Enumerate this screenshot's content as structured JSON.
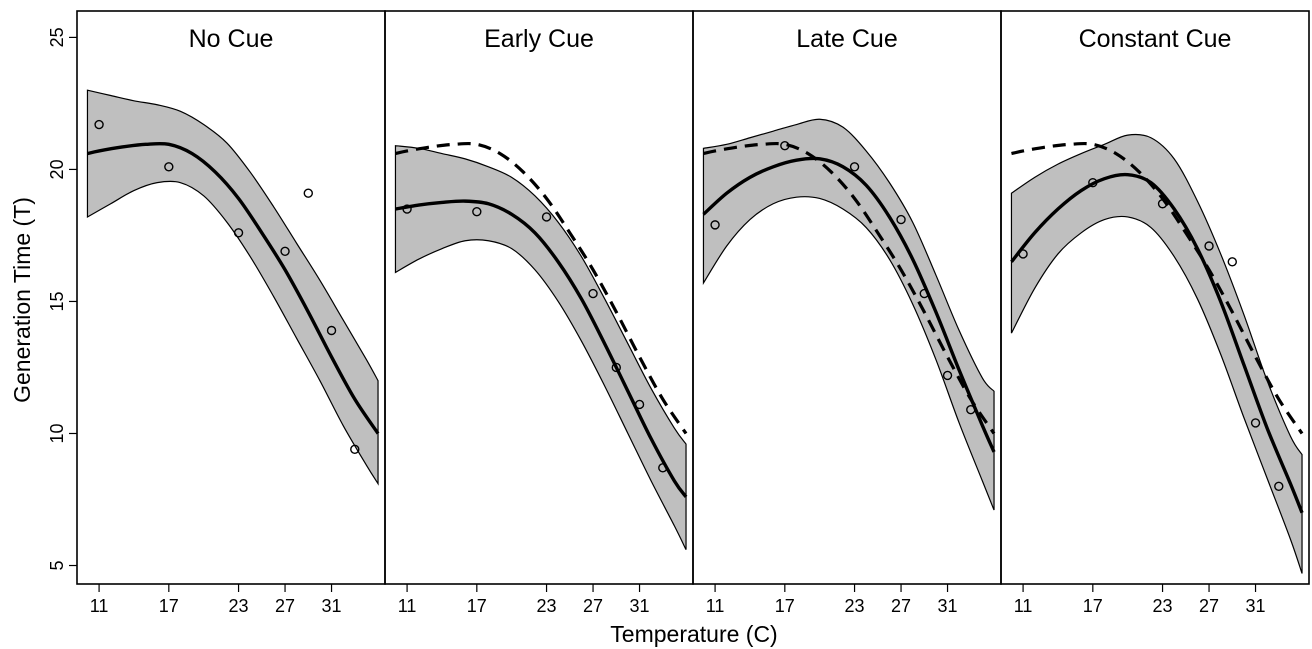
{
  "chart_data": {
    "type": "line",
    "xlabel": "Temperature (C)",
    "ylabel": "Generation Time (T)",
    "ylim": [
      4.3,
      26
    ],
    "xlim": [
      9.1,
      35.6
    ],
    "x_ticks": [
      11,
      17,
      23,
      27,
      31
    ],
    "y_ticks": [
      5,
      10,
      15,
      20,
      25
    ],
    "grid": false,
    "colors": {
      "fit": "#000000",
      "band": "#bfbfbf",
      "reference": "#000000"
    },
    "panels": [
      {
        "title": "No Cue",
        "points": [
          [
            11,
            21.7
          ],
          [
            17,
            20.1
          ],
          [
            23,
            17.6
          ],
          [
            27,
            16.9
          ],
          [
            29,
            19.1
          ],
          [
            31,
            13.9
          ],
          [
            33,
            9.4
          ]
        ],
        "fit": [
          [
            10,
            20.6
          ],
          [
            11,
            20.7
          ],
          [
            13,
            20.85
          ],
          [
            15,
            20.95
          ],
          [
            17,
            20.95
          ],
          [
            19,
            20.6
          ],
          [
            21,
            19.9
          ],
          [
            23,
            18.9
          ],
          [
            25,
            17.6
          ],
          [
            27,
            16.2
          ],
          [
            29,
            14.6
          ],
          [
            31,
            12.9
          ],
          [
            33,
            11.3
          ],
          [
            35,
            10.0
          ]
        ],
        "upper": [
          [
            10,
            23.0
          ],
          [
            12,
            22.8
          ],
          [
            14,
            22.6
          ],
          [
            16,
            22.45
          ],
          [
            18,
            22.2
          ],
          [
            20,
            21.7
          ],
          [
            22,
            21.0
          ],
          [
            24,
            19.9
          ],
          [
            26,
            18.6
          ],
          [
            28,
            17.2
          ],
          [
            30,
            15.8
          ],
          [
            32,
            14.3
          ],
          [
            34,
            12.8
          ],
          [
            35,
            12.0
          ]
        ],
        "lower": [
          [
            10,
            18.2
          ],
          [
            12,
            18.7
          ],
          [
            14,
            19.2
          ],
          [
            16,
            19.5
          ],
          [
            18,
            19.5
          ],
          [
            20,
            19.0
          ],
          [
            22,
            18.0
          ],
          [
            24,
            16.7
          ],
          [
            26,
            15.2
          ],
          [
            28,
            13.6
          ],
          [
            30,
            12.0
          ],
          [
            32,
            10.3
          ],
          [
            34,
            8.8
          ],
          [
            35,
            8.1
          ]
        ],
        "reference": []
      },
      {
        "title": "Early Cue",
        "points": [
          [
            11,
            18.5
          ],
          [
            17,
            18.4
          ],
          [
            23,
            18.2
          ],
          [
            27,
            15.3
          ],
          [
            29,
            12.5
          ],
          [
            31,
            11.1
          ],
          [
            33,
            8.7
          ]
        ],
        "fit": [
          [
            10,
            18.5
          ],
          [
            12,
            18.65
          ],
          [
            14,
            18.75
          ],
          [
            16,
            18.8
          ],
          [
            18,
            18.7
          ],
          [
            20,
            18.3
          ],
          [
            22,
            17.6
          ],
          [
            24,
            16.5
          ],
          [
            26,
            15.1
          ],
          [
            28,
            13.4
          ],
          [
            30,
            11.6
          ],
          [
            32,
            9.8
          ],
          [
            34,
            8.2
          ],
          [
            35,
            7.6
          ]
        ],
        "upper": [
          [
            10,
            20.9
          ],
          [
            12,
            20.8
          ],
          [
            14,
            20.6
          ],
          [
            16,
            20.4
          ],
          [
            18,
            20.1
          ],
          [
            20,
            19.7
          ],
          [
            22,
            19.0
          ],
          [
            24,
            18.0
          ],
          [
            26,
            16.7
          ],
          [
            28,
            15.1
          ],
          [
            30,
            13.4
          ],
          [
            32,
            11.7
          ],
          [
            34,
            10.2
          ],
          [
            35,
            9.6
          ]
        ],
        "lower": [
          [
            10,
            16.1
          ],
          [
            12,
            16.6
          ],
          [
            14,
            17.0
          ],
          [
            16,
            17.3
          ],
          [
            18,
            17.3
          ],
          [
            20,
            17.0
          ],
          [
            22,
            16.2
          ],
          [
            24,
            15.0
          ],
          [
            26,
            13.5
          ],
          [
            28,
            11.8
          ],
          [
            30,
            10.0
          ],
          [
            32,
            8.2
          ],
          [
            34,
            6.5
          ],
          [
            35,
            5.6
          ]
        ],
        "reference": [
          [
            10,
            20.6
          ],
          [
            11,
            20.7
          ],
          [
            13,
            20.85
          ],
          [
            15,
            20.95
          ],
          [
            17,
            20.95
          ],
          [
            19,
            20.6
          ],
          [
            21,
            19.9
          ],
          [
            23,
            18.9
          ],
          [
            25,
            17.6
          ],
          [
            27,
            16.2
          ],
          [
            29,
            14.6
          ],
          [
            31,
            12.9
          ],
          [
            33,
            11.3
          ],
          [
            35,
            10.0
          ]
        ]
      },
      {
        "title": "Late Cue",
        "points": [
          [
            11,
            17.9
          ],
          [
            17,
            20.9
          ],
          [
            23,
            20.1
          ],
          [
            27,
            18.1
          ],
          [
            29,
            15.3
          ],
          [
            31,
            12.2
          ],
          [
            33,
            10.9
          ]
        ],
        "fit": [
          [
            10,
            18.3
          ],
          [
            12,
            19.1
          ],
          [
            14,
            19.7
          ],
          [
            16,
            20.1
          ],
          [
            18,
            20.35
          ],
          [
            20,
            20.4
          ],
          [
            22,
            20.1
          ],
          [
            24,
            19.4
          ],
          [
            26,
            18.2
          ],
          [
            28,
            16.6
          ],
          [
            30,
            14.6
          ],
          [
            32,
            12.4
          ],
          [
            34,
            10.3
          ],
          [
            35,
            9.3
          ]
        ],
        "upper": [
          [
            10,
            20.8
          ],
          [
            12,
            20.95
          ],
          [
            14,
            21.2
          ],
          [
            16,
            21.45
          ],
          [
            18,
            21.7
          ],
          [
            20,
            21.9
          ],
          [
            22,
            21.6
          ],
          [
            24,
            20.7
          ],
          [
            26,
            19.5
          ],
          [
            28,
            18.0
          ],
          [
            30,
            16.0
          ],
          [
            32,
            13.9
          ],
          [
            34,
            12.1
          ],
          [
            35,
            11.6
          ]
        ],
        "lower": [
          [
            10,
            15.7
          ],
          [
            12,
            17.1
          ],
          [
            14,
            18.1
          ],
          [
            16,
            18.7
          ],
          [
            18,
            18.95
          ],
          [
            20,
            18.9
          ],
          [
            22,
            18.5
          ],
          [
            24,
            17.8
          ],
          [
            26,
            16.6
          ],
          [
            28,
            14.9
          ],
          [
            30,
            12.8
          ],
          [
            32,
            10.4
          ],
          [
            34,
            8.2
          ],
          [
            35,
            7.1
          ]
        ],
        "reference": [
          [
            10,
            20.6
          ],
          [
            11,
            20.7
          ],
          [
            13,
            20.85
          ],
          [
            15,
            20.95
          ],
          [
            17,
            20.95
          ],
          [
            19,
            20.6
          ],
          [
            21,
            19.9
          ],
          [
            23,
            18.9
          ],
          [
            25,
            17.6
          ],
          [
            27,
            16.2
          ],
          [
            29,
            14.6
          ],
          [
            31,
            12.9
          ],
          [
            33,
            11.3
          ],
          [
            35,
            10.0
          ]
        ]
      },
      {
        "title": "Constant Cue",
        "points": [
          [
            11,
            16.8
          ],
          [
            17,
            19.5
          ],
          [
            23,
            18.7
          ],
          [
            27,
            17.1
          ],
          [
            29,
            16.5
          ],
          [
            31,
            10.4
          ],
          [
            33,
            8.0
          ]
        ],
        "fit": [
          [
            10,
            16.5
          ],
          [
            12,
            17.6
          ],
          [
            14,
            18.5
          ],
          [
            16,
            19.2
          ],
          [
            18,
            19.65
          ],
          [
            20,
            19.8
          ],
          [
            22,
            19.5
          ],
          [
            24,
            18.5
          ],
          [
            26,
            17.0
          ],
          [
            28,
            15.0
          ],
          [
            30,
            12.6
          ],
          [
            32,
            10.2
          ],
          [
            34,
            8.1
          ],
          [
            35,
            7.0
          ]
        ],
        "upper": [
          [
            10,
            19.1
          ],
          [
            12,
            19.7
          ],
          [
            14,
            20.2
          ],
          [
            16,
            20.6
          ],
          [
            18,
            20.95
          ],
          [
            20,
            21.3
          ],
          [
            22,
            21.2
          ],
          [
            24,
            20.4
          ],
          [
            26,
            18.8
          ],
          [
            28,
            16.8
          ],
          [
            30,
            14.5
          ],
          [
            32,
            12.0
          ],
          [
            34,
            9.9
          ],
          [
            35,
            9.2
          ]
        ],
        "lower": [
          [
            10,
            13.8
          ],
          [
            12,
            15.5
          ],
          [
            14,
            16.8
          ],
          [
            16,
            17.6
          ],
          [
            18,
            18.1
          ],
          [
            20,
            18.2
          ],
          [
            22,
            17.8
          ],
          [
            24,
            16.7
          ],
          [
            26,
            15.1
          ],
          [
            28,
            13.0
          ],
          [
            30,
            10.6
          ],
          [
            32,
            8.3
          ],
          [
            34,
            6.0
          ],
          [
            35,
            4.7
          ]
        ],
        "reference": [
          [
            10,
            20.6
          ],
          [
            11,
            20.7
          ],
          [
            13,
            20.85
          ],
          [
            15,
            20.95
          ],
          [
            17,
            20.95
          ],
          [
            19,
            20.6
          ],
          [
            21,
            19.9
          ],
          [
            23,
            18.9
          ],
          [
            25,
            17.6
          ],
          [
            27,
            16.2
          ],
          [
            29,
            14.6
          ],
          [
            31,
            12.9
          ],
          [
            33,
            11.3
          ],
          [
            35,
            10.0
          ]
        ]
      }
    ]
  }
}
